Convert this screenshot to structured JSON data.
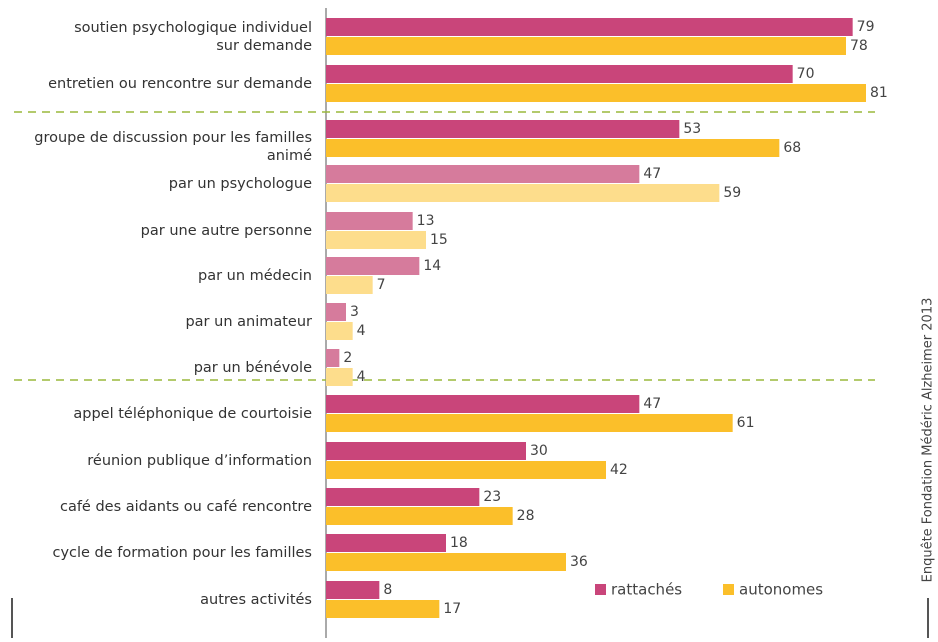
{
  "chart_data": {
    "type": "barh",
    "categories": [
      "soutien psychologique individuel\nsur demande",
      "entretien ou rencontre sur demande",
      "groupe de discussion pour les familles\nanimé",
      "par un psychologue",
      "par une autre personne",
      "par un médecin",
      "par un animateur",
      "par un bénévole",
      "appel téléphonique de courtoisie",
      "réunion publique d’information",
      "café des aidants ou café rencontre",
      "cycle de formation pour les familles",
      "autres activités"
    ],
    "series": [
      {
        "name": "rattachés",
        "color": "#c9457a",
        "colors": [
          "#c9457a",
          "#c9457a",
          "#c9457a",
          "#d67b9c",
          "#d67b9c",
          "#d67b9c",
          "#d67b9c",
          "#d67b9c",
          "#c9457a",
          "#c9457a",
          "#c9457a",
          "#c9457a",
          "#c9457a"
        ],
        "values": [
          79,
          70,
          53,
          47,
          13,
          14,
          3,
          2,
          47,
          30,
          23,
          18,
          8
        ]
      },
      {
        "name": "autonomes",
        "color": "#fbbf2a",
        "colors": [
          "#fbbf2a",
          "#fbbf2a",
          "#fbbf2a",
          "#fddd8c",
          "#fddd8c",
          "#fddd8c",
          "#fddd8c",
          "#fddd8c",
          "#fbbf2a",
          "#fbbf2a",
          "#fbbf2a",
          "#fbbf2a",
          "#fbbf2a"
        ],
        "values": [
          78,
          81,
          68,
          59,
          15,
          7,
          4,
          4,
          61,
          42,
          28,
          36,
          17
        ]
      }
    ],
    "xlim": [
      0,
      90
    ],
    "source": "Enquête Fondation Médéric Alzheimer 2013"
  }
}
